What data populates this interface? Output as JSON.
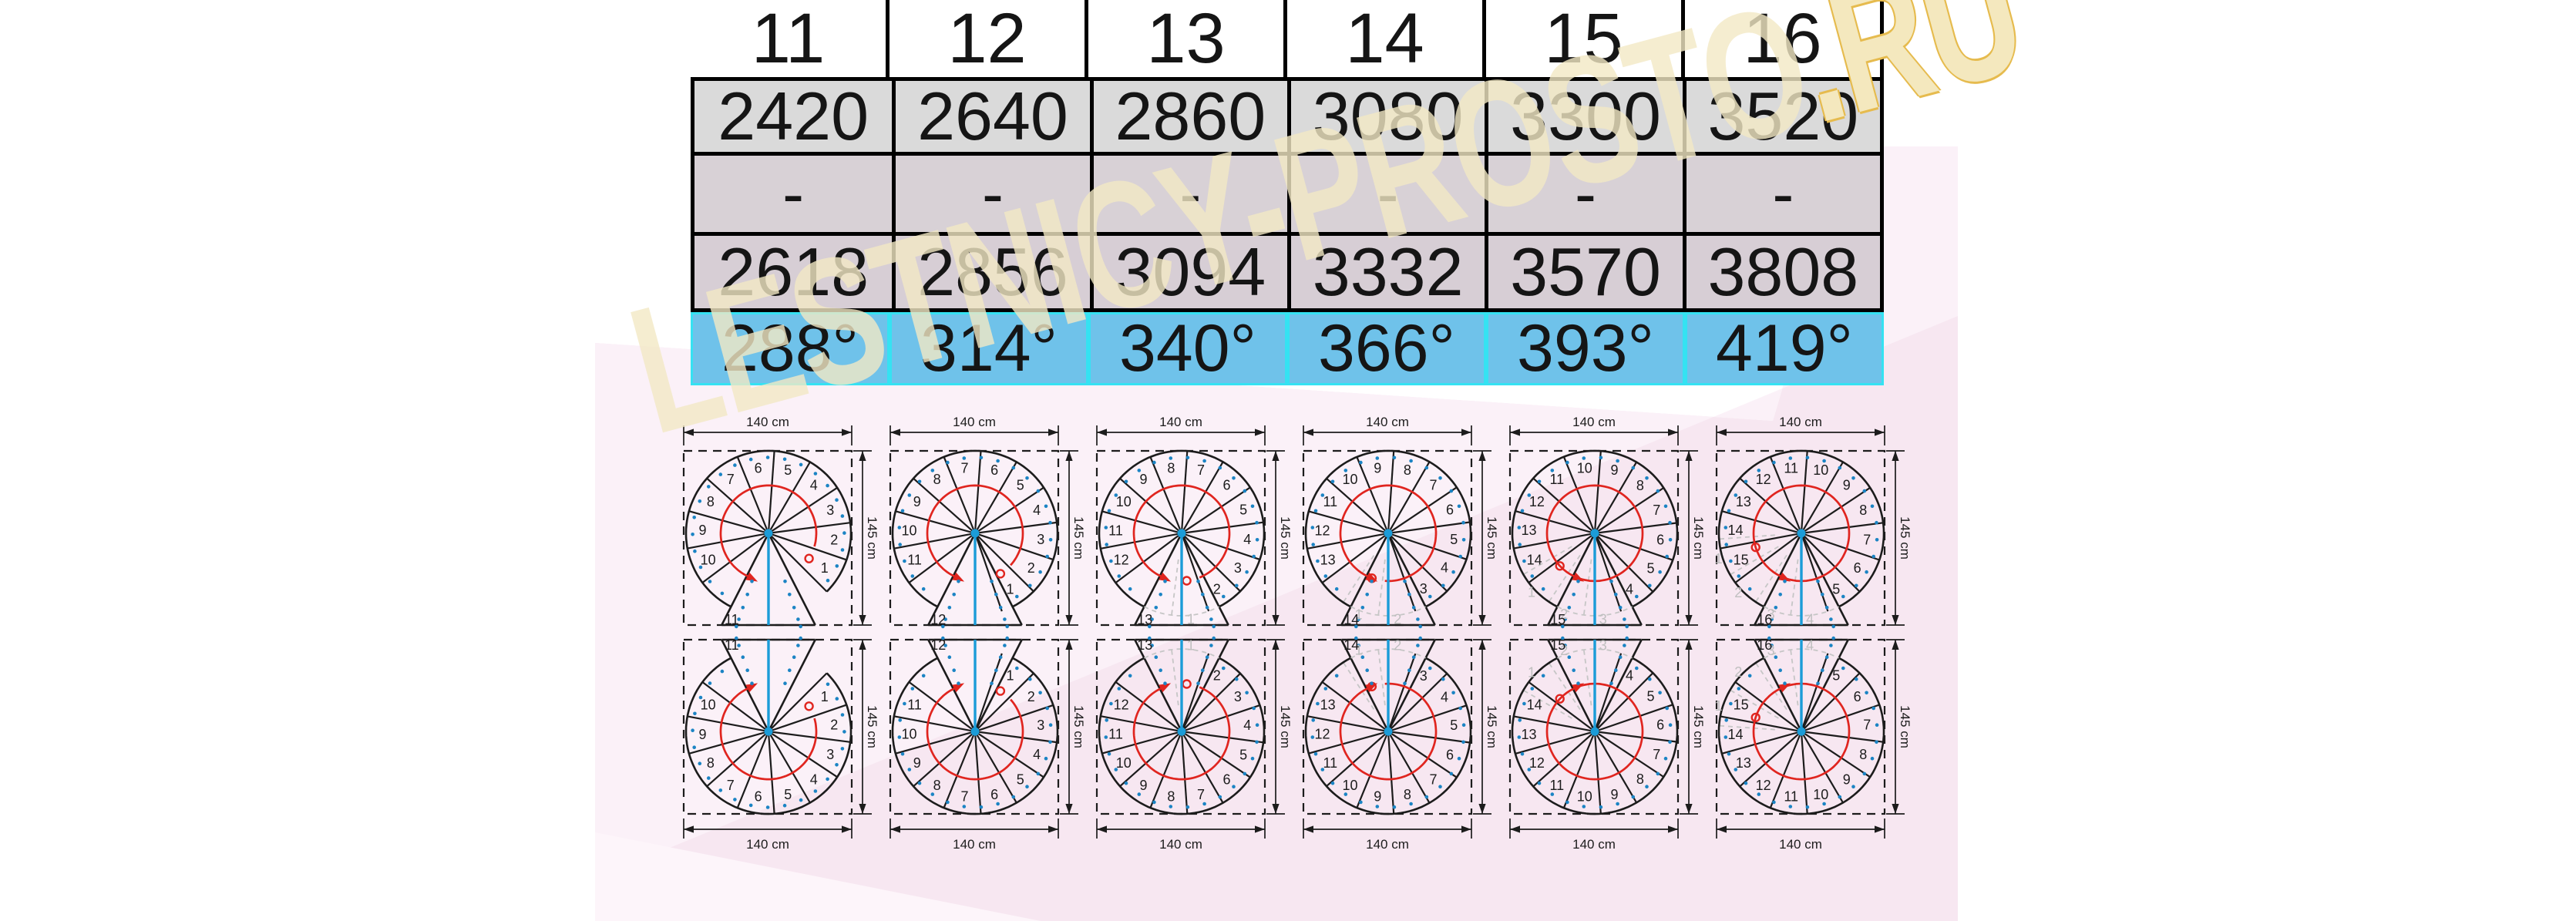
{
  "table": {
    "header": [
      "11",
      "12",
      "13",
      "14",
      "15",
      "16"
    ],
    "rows": [
      {
        "id": "row-2420",
        "values": [
          "2420",
          "2640",
          "2860",
          "3080",
          "3300",
          "3520"
        ]
      },
      {
        "id": "row-dash",
        "values": [
          "-",
          "-",
          "-",
          "-",
          "-",
          "-"
        ]
      },
      {
        "id": "row-2618",
        "values": [
          "2618",
          "2856",
          "3094",
          "3332",
          "3570",
          "3808"
        ]
      },
      {
        "id": "row-angle",
        "values": [
          "288°",
          "314°",
          "340°",
          "366°",
          "393°",
          "419°"
        ]
      }
    ]
  },
  "watermark": {
    "main": "LESTNICY-PROSTO",
    "tail": ".RU"
  },
  "diagrams": {
    "width_label": "140 cm",
    "height_label": "145 cm",
    "items": [
      {
        "steps": 11,
        "total_angle": 288,
        "row": "top"
      },
      {
        "steps": 12,
        "total_angle": 314,
        "row": "top"
      },
      {
        "steps": 13,
        "total_angle": 340,
        "row": "top"
      },
      {
        "steps": 14,
        "total_angle": 366,
        "row": "top"
      },
      {
        "steps": 15,
        "total_angle": 393,
        "row": "top"
      },
      {
        "steps": 16,
        "total_angle": 419,
        "row": "top"
      },
      {
        "steps": 11,
        "total_angle": 288,
        "row": "bottom"
      },
      {
        "steps": 12,
        "total_angle": 314,
        "row": "bottom"
      },
      {
        "steps": 13,
        "total_angle": 340,
        "row": "bottom"
      },
      {
        "steps": 14,
        "total_angle": 366,
        "row": "bottom"
      },
      {
        "steps": 15,
        "total_angle": 393,
        "row": "bottom"
      },
      {
        "steps": 16,
        "total_angle": 419,
        "row": "bottom"
      }
    ]
  },
  "colors": {
    "blue_cell": "#6FC2EA",
    "cyan_border": "#35E2F2",
    "grey_cell": "#DADADA",
    "pink_background": "#F7E7F1",
    "pink_light": "#FBF1F8",
    "red_accent": "#E0251F",
    "blue_accent": "#1B9CD8",
    "dot_blue": "#1B84C4",
    "watermark_cream": "#F2E9C4",
    "watermark_outline": "#E6BB4E"
  }
}
